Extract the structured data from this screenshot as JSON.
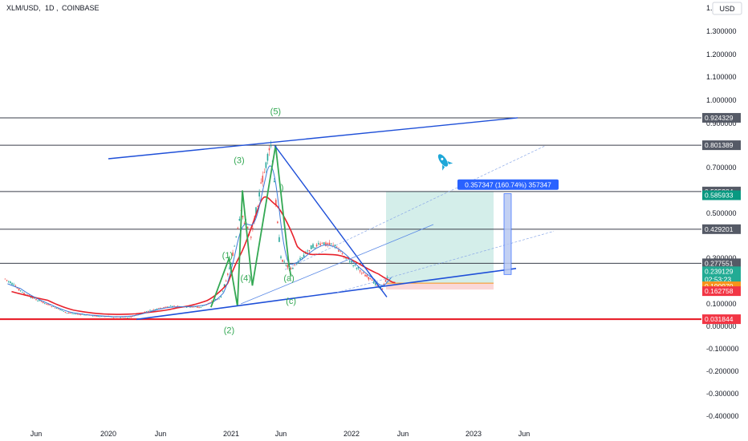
{
  "symbol": {
    "ticker": "XLM/USD",
    "interval": "1D",
    "exchange": "COINBASE"
  },
  "currency_label": "USD",
  "colors": {
    "candle_up": "#26a69a",
    "candle_down": "#ef5350",
    "trendline": "#1e4fd8",
    "wave": "#33a853",
    "ma_red": "#e8212b",
    "ma_blue": "#3d7bd9",
    "target_zone": "#cdebe6",
    "stop_zone": "#fbd3d3",
    "tag_dark": "#555a66",
    "tag_green": "#089981",
    "tag_orange": "#f7931a",
    "tag_red": "#f23645",
    "measure_blue": "#2962ff"
  },
  "chart_data": {
    "type": "candlestick",
    "y_axis": {
      "ticks": [
        "1.400000",
        "1.300000",
        "1.200000",
        "1.100000",
        "1.000000",
        "0.900000",
        "0.700000",
        "0.500000",
        "0.300000",
        "0.100000",
        "0.000000",
        "-0.100000",
        "-0.200000",
        "-0.300000",
        "-0.400000"
      ],
      "tick_values": [
        1.4,
        1.3,
        1.2,
        1.1,
        1.0,
        0.9,
        0.7,
        0.5,
        0.3,
        0.1,
        0.0,
        -0.1,
        -0.2,
        -0.3,
        -0.4
      ]
    },
    "x_axis": {
      "ticks": [
        "Jun",
        "2020",
        "Jun",
        "2021",
        "Jun",
        "2022",
        "Jun",
        "2023",
        "Jun"
      ],
      "tick_dates": [
        "2019-06",
        "2020-01",
        "2020-06",
        "2021-01",
        "2021-06",
        "2022-01",
        "2022-06",
        "2023-01",
        "2023-06"
      ]
    },
    "price_points": [
      [
        "2019-03",
        0.21
      ],
      [
        "2019-05",
        0.14
      ],
      [
        "2019-07",
        0.1
      ],
      [
        "2019-09",
        0.06
      ],
      [
        "2019-12",
        0.045
      ],
      [
        "2020-03",
        0.04
      ],
      [
        "2020-05",
        0.07
      ],
      [
        "2020-07",
        0.09
      ],
      [
        "2020-10",
        0.085
      ],
      [
        "2020-12",
        0.13
      ],
      [
        "2021-01",
        0.28
      ],
      [
        "2021-02",
        0.5
      ],
      [
        "2021-03",
        0.4
      ],
      [
        "2021-04",
        0.62
      ],
      [
        "2021-05",
        0.8
      ],
      [
        "2021-06",
        0.3
      ],
      [
        "2021-07",
        0.25
      ],
      [
        "2021-09",
        0.35
      ],
      [
        "2021-11",
        0.37
      ],
      [
        "2022-01",
        0.28
      ],
      [
        "2022-03",
        0.2
      ],
      [
        "2022-04",
        0.165
      ],
      [
        "2022-04-20",
        0.239129
      ]
    ],
    "horizontal_levels": [
      {
        "price": 0.924329,
        "label": "0.924329"
      },
      {
        "price": 0.801389,
        "label": "0.801389"
      },
      {
        "price": 0.595284,
        "label": "0.595284"
      },
      {
        "price": 0.429201,
        "label": "0.429201"
      },
      {
        "price": 0.277551,
        "label": "0.277551"
      },
      {
        "price": 0.031844,
        "label": "0.031844"
      }
    ],
    "price_tags": [
      {
        "price": 0.585933,
        "label": "0.585933",
        "role": "target"
      },
      {
        "price": 0.239129,
        "label": "0.239129",
        "countdown": "02:53:23",
        "role": "last"
      },
      {
        "price": 0.19097,
        "label": "0.190970",
        "role": "entry"
      },
      {
        "price": 0.162758,
        "label": "0.162758",
        "role": "stop"
      }
    ],
    "measure_label": "0.357347 (160.74%) 357347",
    "wave_labels": [
      {
        "label": "(1)",
        "date": "2020-12-20",
        "price": 0.3
      },
      {
        "label": "(2)",
        "date": "2020-12-25",
        "price": -0.03
      },
      {
        "label": "(3)",
        "date": "2021-01-25",
        "price": 0.72
      },
      {
        "label": "(4)",
        "date": "2021-02-15",
        "price": 0.2
      },
      {
        "label": "(5)",
        "date": "2021-05-15",
        "price": 0.94
      },
      {
        "label": "(a)",
        "date": "2021-06-25",
        "price": 0.2
      },
      {
        "label": "(c)",
        "date": "2021-07-01",
        "price": 0.1
      },
      {
        "label": ")",
        "date": "2021-06-05",
        "price": 0.6
      }
    ]
  }
}
